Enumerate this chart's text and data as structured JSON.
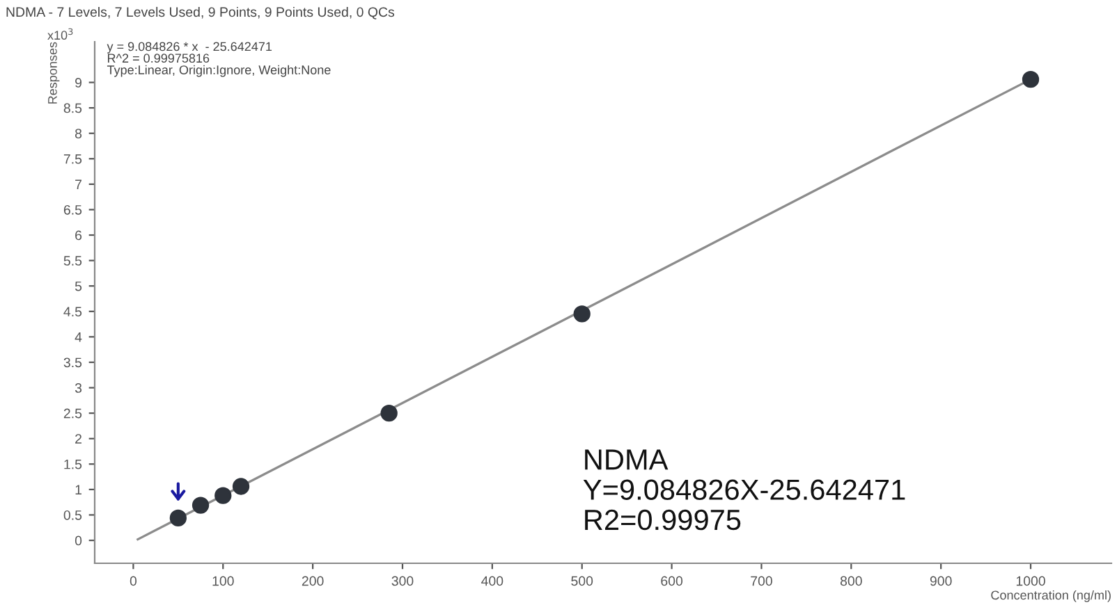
{
  "chart_data": {
    "type": "scatter",
    "title": "NDMA - 7 Levels, 7 Levels Used, 9 Points, 9 Points Used, 0 QCs",
    "xlabel": "Concentration (ng/ml)",
    "ylabel": "Responses",
    "series": [
      {
        "color": "#2e333b",
        "marker": "circle",
        "x": [
          50,
          75,
          100,
          120,
          285,
          500,
          1000
        ],
        "values": [
          0.44,
          0.69,
          0.88,
          1.06,
          2.5,
          4.45,
          9.06
        ]
      },
      {
        "type": "line",
        "color": "#8c8c8c",
        "marker": "none",
        "line_style": "solid",
        "x": [
          5,
          1000
        ],
        "values": [
          0.02,
          9.06
        ]
      }
    ],
    "xlim": [
      -43,
      1090
    ],
    "ylim": [
      -0.45,
      9.8
    ],
    "xticks": [
      0,
      100,
      200,
      300,
      400,
      500,
      600,
      700,
      800,
      900,
      1000
    ],
    "yticks": [
      0,
      0.5,
      1,
      1.5,
      2,
      2.5,
      3,
      3.5,
      4,
      4.5,
      5,
      5.5,
      6,
      6.5,
      7,
      7.5,
      8,
      8.5,
      9
    ],
    "grid": false,
    "annotations": [
      "x10$^{3}$",
      "y = 9.084826 * x  - 25.642471\nR^2 = 0.99975816\nType:Linear, Origin:Ignore, Weight:None",
      "NDMA\nY=9.084826X-25.642471\nR2=0.99975"
    ]
  }
}
